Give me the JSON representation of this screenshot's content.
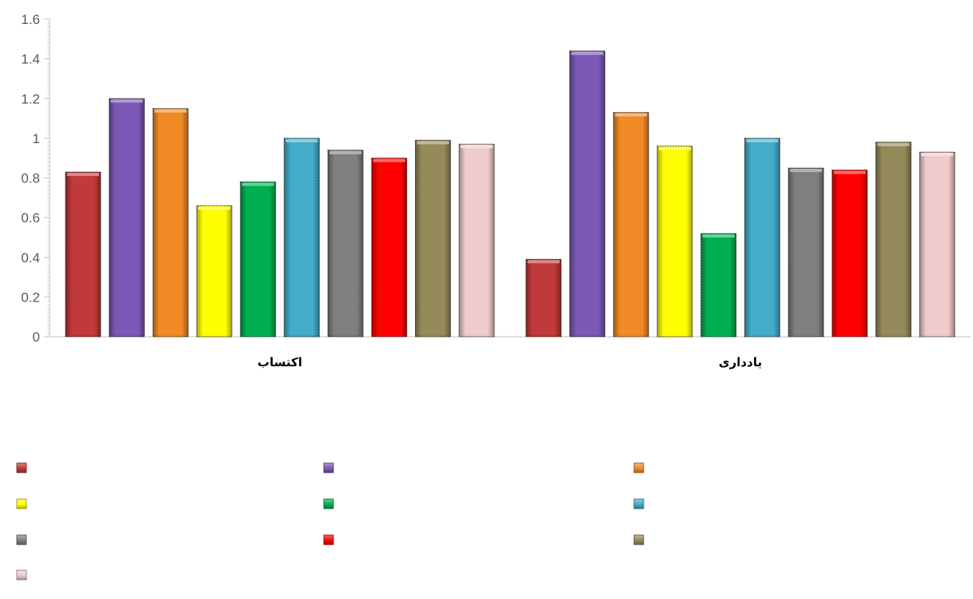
{
  "chart_data": {
    "type": "bar",
    "categories": [
      "اکتساب",
      "یادداری"
    ],
    "ylim": [
      0,
      1.6
    ],
    "yticks": [
      "0",
      "0.2",
      "0.4",
      "0.6",
      "0.8",
      "1",
      "1.2",
      "1.4",
      "1.6"
    ],
    "ytick_values": [
      0,
      0.2,
      0.4,
      0.6,
      0.8,
      1.0,
      1.2,
      1.4,
      1.6
    ],
    "grid": false,
    "legend_placement": "bottom",
    "series": [
      {
        "color": "#c0393b",
        "values": [
          0.83,
          0.39
        ]
      },
      {
        "color": "#7b58b6",
        "values": [
          1.2,
          1.44
        ]
      },
      {
        "color": "#f08a25",
        "values": [
          1.15,
          1.13
        ]
      },
      {
        "color": "#ffff00",
        "values": [
          0.66,
          0.96
        ]
      },
      {
        "color": "#00b050",
        "values": [
          0.78,
          0.52
        ]
      },
      {
        "color": "#42acc9",
        "values": [
          1.0,
          1.0
        ]
      },
      {
        "color": "#7f7f7f",
        "values": [
          0.94,
          0.85
        ]
      },
      {
        "color": "#ff0000",
        "values": [
          0.9,
          0.84
        ]
      },
      {
        "color": "#958b5a",
        "values": [
          0.99,
          0.98
        ]
      },
      {
        "color": "#f0cbcb",
        "values": [
          0.97,
          0.93
        ]
      }
    ]
  }
}
